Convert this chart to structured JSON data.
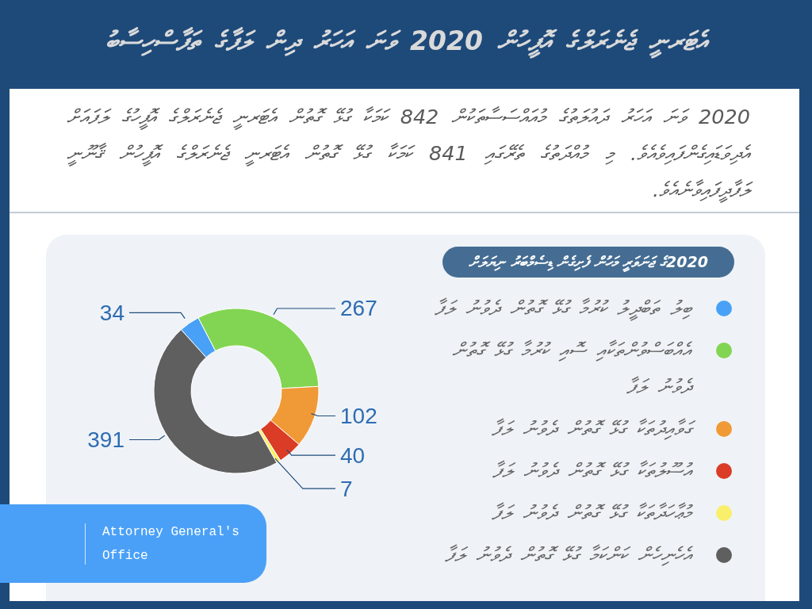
{
  "chart_data": {
    "type": "donut",
    "title": "އެޓަރނީ ޖެނެރަލްގެ އޮފީހުން 2020 ވަނަ އަހަރު ދިން ލަފާގެ ތަފާސްހިސާބު",
    "subtitle": "2020 ވަނަ އަހަރު ދައުލަތުގެ މުއައްސަސާތަކުން 842 ކަމަކާ ގުޅޭ ގޮތުން އެޓަރނީ ޖެނެރަލްގެ އޮފީހުގެ ލަފައަށް އެދިވަޑައިގެންފައިވެއެވެ. މި މުއްދަތުގެ ތެރޭގައި 841 ކަމަކާ ގުޅޭ ގޮތުން އެޓަރނީ ޖެނެރަލްގެ އޮފީހުން ޤާނޫނީ ލަފާދީފައިވާނެއެވެ.",
    "legend_title": "2020ގެ ޖަނަވަރީ މަހުން ފެށިގެން ޑިސެމްބަރު ނިޔަލަށް",
    "categories": [
      "ބިލު ތަބްދީލު ކުރުމާ ގުޅޭ ގޮތުން ދެވުނު ލަފާ",
      "އެއްބަސްވުންތަކާއި ސޮއި ކުރުމާ ގުޅޭ ގޮތުން ދެވުނު ލަފާ",
      "ގަވާއިދުތަކާ ގުޅޭ ގޮތުން ދެވުނު ލަފާ",
      "އުސޫލުތަކާ ގުޅޭ ގޮތުން ދެވުނު ލަފާ",
      "މުޢާހަދާތަކާ ގުޅޭ ގޮތުން ދެވުނު ލަފާ",
      "އެހެނިހެން ކަންކަމާ ގުޅޭ ގޮތުން ދެވުނު ލަފާ"
    ],
    "values": [
      34,
      267,
      102,
      40,
      7,
      391
    ],
    "colors": [
      "#48a1f6",
      "#82d552",
      "#f09a37",
      "#db3c26",
      "#f9ef6b",
      "#5f5f5f"
    ],
    "data_labels": true,
    "legend": "right",
    "annotations": [
      "Attorney General's Office"
    ]
  }
}
